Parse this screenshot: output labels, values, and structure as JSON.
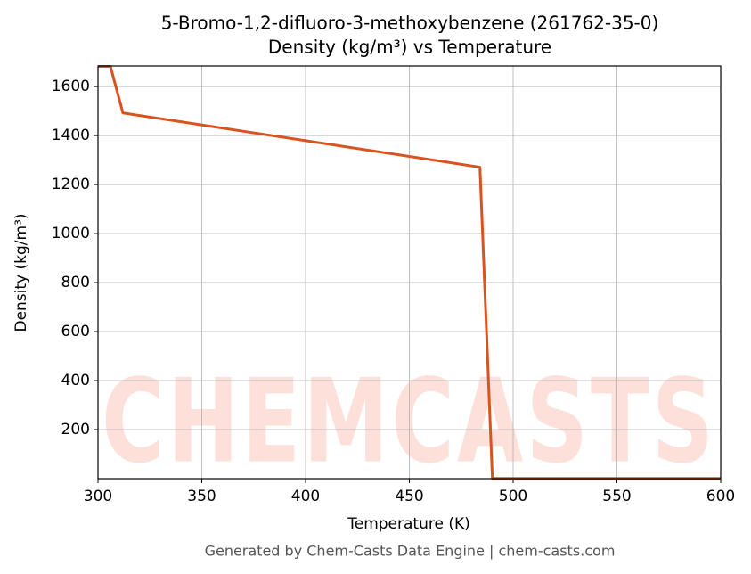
{
  "chart_data": {
    "type": "line",
    "title": "5-Bromo-1,2-difluoro-3-methoxybenzene (261762-35-0)",
    "subtitle": "Density (kg/m³) vs Temperature",
    "x_label": "Temperature (K)",
    "y_label": "Density (kg/m³)",
    "footer": "Generated by Chem-Casts Data Engine | chem-casts.com",
    "watermark": "CHEMCASTS",
    "x": [
      300,
      306,
      312,
      484,
      490,
      600
    ],
    "series": [
      {
        "name": "Density",
        "color": "#d9531e",
        "values": [
          1682,
          1682,
          1492,
          1271,
          1,
          1
        ]
      }
    ],
    "xlim": [
      300,
      600
    ],
    "xticks": [
      300,
      350,
      400,
      450,
      500,
      550,
      600
    ],
    "ylim": [
      0,
      1684
    ],
    "yticks": [
      200,
      400,
      600,
      800,
      1000,
      1200,
      1400,
      1600
    ],
    "grid": true
  }
}
